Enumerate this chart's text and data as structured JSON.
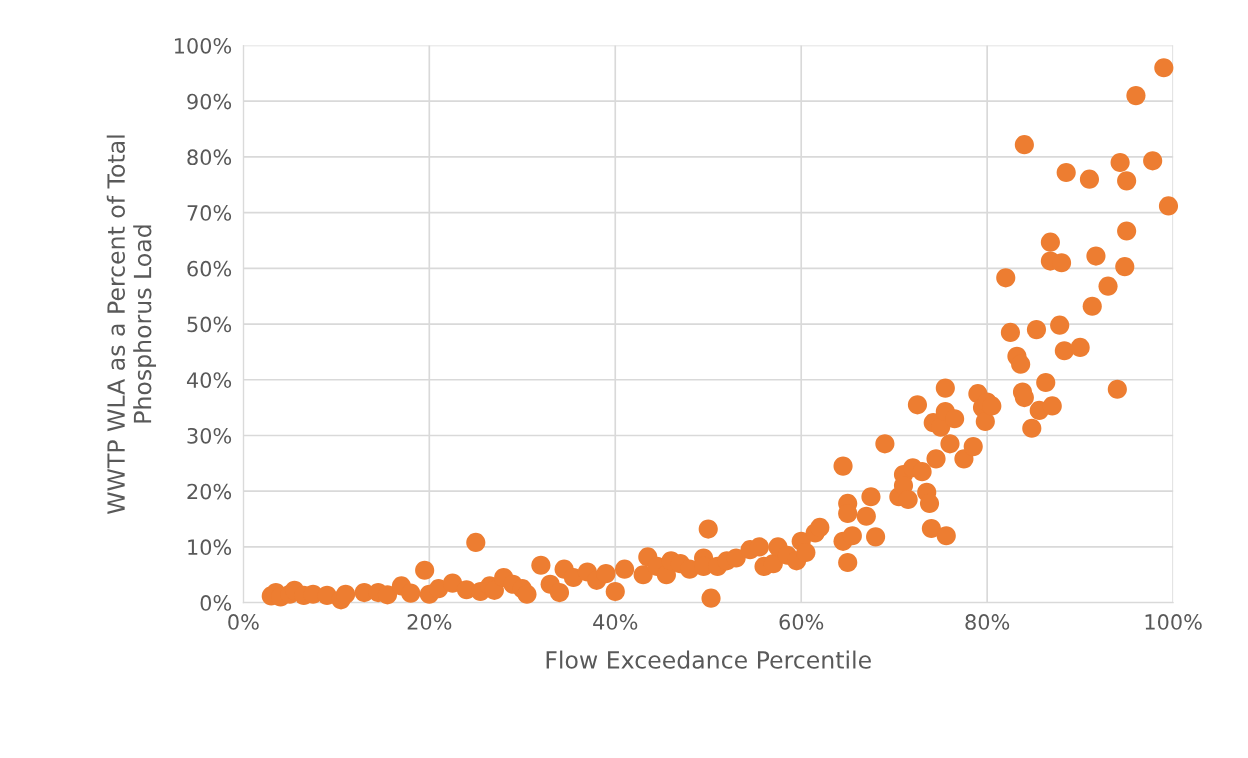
{
  "chart_data": {
    "type": "scatter",
    "xlabel": "Flow Exceedance Percentile",
    "ylabel": "WWTP WLA as a Percent of Total\nPhosphorus Load",
    "x": [
      3,
      3.5,
      4,
      5,
      5.5,
      6.5,
      7.5,
      9,
      10.5,
      11,
      13,
      14.5,
      15.5,
      17,
      18,
      19.5,
      20,
      21,
      22.5,
      24,
      25,
      25.5,
      26.5,
      27,
      28,
      29,
      30,
      30.5,
      32,
      33,
      34,
      34.5,
      35.5,
      37,
      38,
      39,
      40,
      41,
      43,
      43.5,
      44.5,
      45.5,
      46,
      47,
      48,
      49.5,
      49.5,
      50,
      50.3,
      51,
      52,
      53,
      54.5,
      55.5,
      56,
      57,
      57.5,
      58.5,
      59.5,
      60,
      60.5,
      61.5,
      62,
      64.5,
      64.5,
      65,
      65,
      65,
      65.5,
      67,
      67.5,
      68,
      69,
      70.5,
      71,
      71,
      71.5,
      72,
      72.5,
      73,
      73.5,
      73.8,
      74,
      74.2,
      74.5,
      75,
      75.5,
      75.5,
      75.6,
      76,
      76.5,
      77.5,
      78.5,
      79,
      79.5,
      79.8,
      80,
      80.5,
      82,
      82.5,
      83.2,
      83.6,
      83.8,
      84,
      84,
      84.8,
      85.3,
      85.6,
      86.3,
      86.8,
      86.8,
      87,
      87.8,
      88,
      88.3,
      88.5,
      90,
      91,
      91.3,
      91.7,
      93,
      94,
      94.3,
      94.8,
      95,
      95,
      96,
      97.8,
      99,
      99.5
    ],
    "values": [
      1.2,
      1.8,
      1,
      1.5,
      2.2,
      1.3,
      1.5,
      1.3,
      0.5,
      1.5,
      1.8,
      1.8,
      1.4,
      3,
      1.7,
      5.8,
      1.5,
      2.5,
      3.5,
      2.3,
      10.8,
      2,
      3,
      2.2,
      4.5,
      3.3,
      2.5,
      1.5,
      6.7,
      3.3,
      1.8,
      6,
      4.5,
      5.5,
      4,
      5.2,
      2,
      6,
      5,
      8.2,
      6.5,
      5,
      7.5,
      7,
      6,
      8,
      6.5,
      13.2,
      0.8,
      6.5,
      7.5,
      8,
      9.5,
      10,
      6.5,
      7,
      10,
      8.5,
      7.5,
      11,
      9,
      12.5,
      13.5,
      24.5,
      11,
      17.8,
      16,
      7.2,
      12,
      15.5,
      19,
      11.8,
      28.5,
      19,
      23,
      21,
      18.5,
      24.2,
      35.5,
      23.5,
      19.8,
      17.8,
      13.3,
      32.3,
      25.8,
      31.5,
      38.5,
      34.3,
      12,
      28.5,
      33,
      25.8,
      28,
      37.5,
      35,
      32.5,
      36,
      35.3,
      58.3,
      48.5,
      44.2,
      42.8,
      37.8,
      36.8,
      82.2,
      31.3,
      49,
      34.5,
      39.5,
      64.7,
      61.3,
      35.3,
      49.8,
      61,
      45.2,
      77.2,
      45.8,
      76,
      53.2,
      62.2,
      56.8,
      38.3,
      79,
      60.3,
      66.7,
      75.7,
      91,
      79.3,
      96,
      71.2
    ],
    "color": "#ed7d31",
    "marker": "circle",
    "xlim": [
      0,
      100
    ],
    "xticks": [
      {
        "value": 0,
        "label": "0%"
      },
      {
        "value": 20,
        "label": "20%"
      },
      {
        "value": 40,
        "label": "40%"
      },
      {
        "value": 60,
        "label": "60%"
      },
      {
        "value": 80,
        "label": "80%"
      },
      {
        "value": 100,
        "label": "100%"
      }
    ],
    "ylim": [
      0,
      100
    ],
    "yticks": [
      {
        "value": 0,
        "label": "0%"
      },
      {
        "value": 10,
        "label": "10%"
      },
      {
        "value": 20,
        "label": "20%"
      },
      {
        "value": 30,
        "label": "30%"
      },
      {
        "value": 40,
        "label": "40%"
      },
      {
        "value": 50,
        "label": "50%"
      },
      {
        "value": 60,
        "label": "60%"
      },
      {
        "value": 70,
        "label": "70%"
      },
      {
        "value": 80,
        "label": "80%"
      },
      {
        "value": 90,
        "label": "90%"
      },
      {
        "value": 100,
        "label": "100%"
      }
    ],
    "grid": true
  }
}
